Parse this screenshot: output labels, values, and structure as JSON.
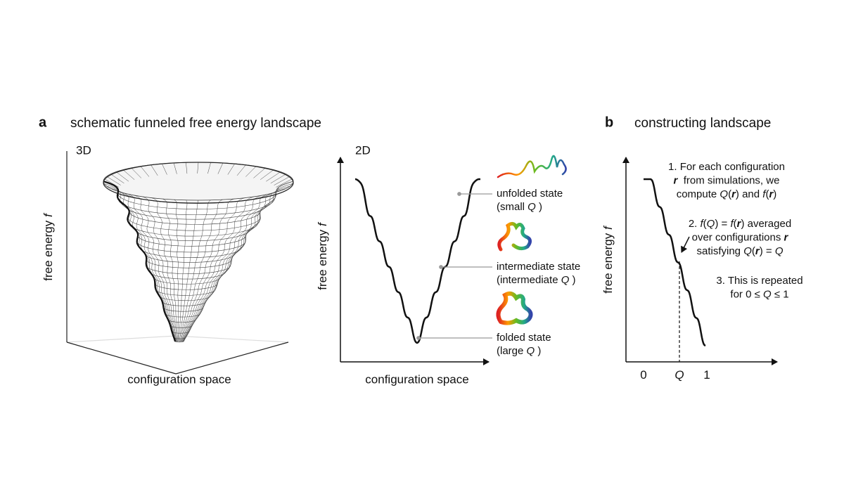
{
  "panel_a": {
    "label": "a",
    "title": "schematic funneled free energy landscape",
    "left": {
      "label": "3D",
      "ylabel": [
        {
          "text": "free energy "
        },
        {
          "text": "f",
          "style": "italic"
        }
      ],
      "xlabel": "configuration space"
    },
    "right": {
      "label": "2D",
      "ylabel": [
        {
          "text": "free energy "
        },
        {
          "text": "f",
          "style": "italic"
        }
      ],
      "xlabel": "configuration space",
      "states": [
        {
          "name": "unfolded state",
          "detail": [
            {
              "text": "(small "
            },
            {
              "text": "Q",
              "style": "italic"
            },
            {
              "text": " )"
            }
          ]
        },
        {
          "name": "intermediate state",
          "detail": [
            {
              "text": "(intermediate "
            },
            {
              "text": "Q",
              "style": "italic"
            },
            {
              "text": " )"
            }
          ]
        },
        {
          "name": "folded state",
          "detail": [
            {
              "text": "(large "
            },
            {
              "text": "Q",
              "style": "italic"
            },
            {
              "text": " )"
            }
          ]
        }
      ]
    }
  },
  "panel_b": {
    "label": "b",
    "title": "constructing landscape",
    "ylabel": [
      {
        "text": "free energy "
      },
      {
        "text": "f",
        "style": "italic"
      }
    ],
    "xtick_labels": [
      {
        "text": "0"
      },
      {
        "text": "Q",
        "style": "italic"
      },
      {
        "text": "1"
      }
    ],
    "steps": [
      [
        [
          {
            "text": "1. For each configuration"
          }
        ],
        [
          {
            "text": "r",
            "style": "bold-italic"
          },
          {
            "text": "  from simulations, we"
          }
        ],
        [
          {
            "text": "compute "
          },
          {
            "text": "Q",
            "style": "italic"
          },
          {
            "text": "("
          },
          {
            "text": "r",
            "style": "bold-italic"
          },
          {
            "text": ") and "
          },
          {
            "text": "f",
            "style": "italic"
          },
          {
            "text": "("
          },
          {
            "text": "r",
            "style": "bold-italic"
          },
          {
            "text": ")"
          }
        ]
      ],
      [
        [
          {
            "text": "2. "
          },
          {
            "text": "f",
            "style": "italic"
          },
          {
            "text": "("
          },
          {
            "text": "Q",
            "style": "italic"
          },
          {
            "text": ") = "
          },
          {
            "text": "f",
            "style": "italic"
          },
          {
            "text": "("
          },
          {
            "text": "r",
            "style": "bold-italic"
          },
          {
            "text": ") averaged"
          }
        ],
        [
          {
            "text": "over configurations "
          },
          {
            "text": "r",
            "style": "bold-italic"
          }
        ],
        [
          {
            "text": "satisfying "
          },
          {
            "text": "Q",
            "style": "italic"
          },
          {
            "text": "("
          },
          {
            "text": "r",
            "style": "bold-italic"
          },
          {
            "text": ") = "
          },
          {
            "text": "Q",
            "style": "italic"
          }
        ]
      ],
      [
        [
          {
            "text": "3. This is repeated"
          }
        ],
        [
          {
            "text": "for 0 ≤ "
          },
          {
            "text": "Q",
            "style": "italic"
          },
          {
            "text": " ≤ 1"
          }
        ]
      ]
    ]
  }
}
